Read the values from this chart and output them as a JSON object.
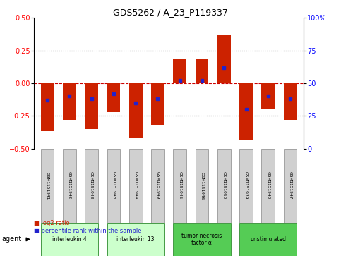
{
  "title": "GDS5262 / A_23_P119337",
  "samples": [
    "GSM1151941",
    "GSM1151942",
    "GSM1151948",
    "GSM1151943",
    "GSM1151944",
    "GSM1151949",
    "GSM1151945",
    "GSM1151946",
    "GSM1151950",
    "GSM1151939",
    "GSM1151940",
    "GSM1151947"
  ],
  "log2_ratio": [
    -0.37,
    -0.28,
    -0.35,
    -0.22,
    -0.42,
    -0.32,
    0.19,
    0.19,
    0.37,
    -0.44,
    -0.2,
    -0.28
  ],
  "percentile_rank": [
    37,
    40,
    38,
    42,
    35,
    38,
    52,
    52,
    62,
    30,
    40,
    38
  ],
  "groups": [
    {
      "label": "interleukin 4",
      "indices": [
        0,
        1,
        2
      ],
      "color": "#ccffcc"
    },
    {
      "label": "interleukin 13",
      "indices": [
        3,
        4,
        5
      ],
      "color": "#ccffcc"
    },
    {
      "label": "tumor necrosis\nfactor-α",
      "indices": [
        6,
        7,
        8
      ],
      "color": "#55cc55"
    },
    {
      "label": "unstimulated",
      "indices": [
        9,
        10,
        11
      ],
      "color": "#55cc55"
    }
  ],
  "ylim": [
    -0.5,
    0.5
  ],
  "right_ylim": [
    0,
    100
  ],
  "right_yticks": [
    0,
    25,
    50,
    75,
    100
  ],
  "right_yticklabels": [
    "0",
    "25",
    "50",
    "75",
    "100%"
  ],
  "left_yticks": [
    -0.5,
    -0.25,
    0,
    0.25,
    0.5
  ],
  "bar_color": "#cc2200",
  "marker_color": "#2222cc",
  "hline_color": "#cc0000",
  "dotted_color": "black",
  "bg_color": "white",
  "bar_width": 0.6
}
